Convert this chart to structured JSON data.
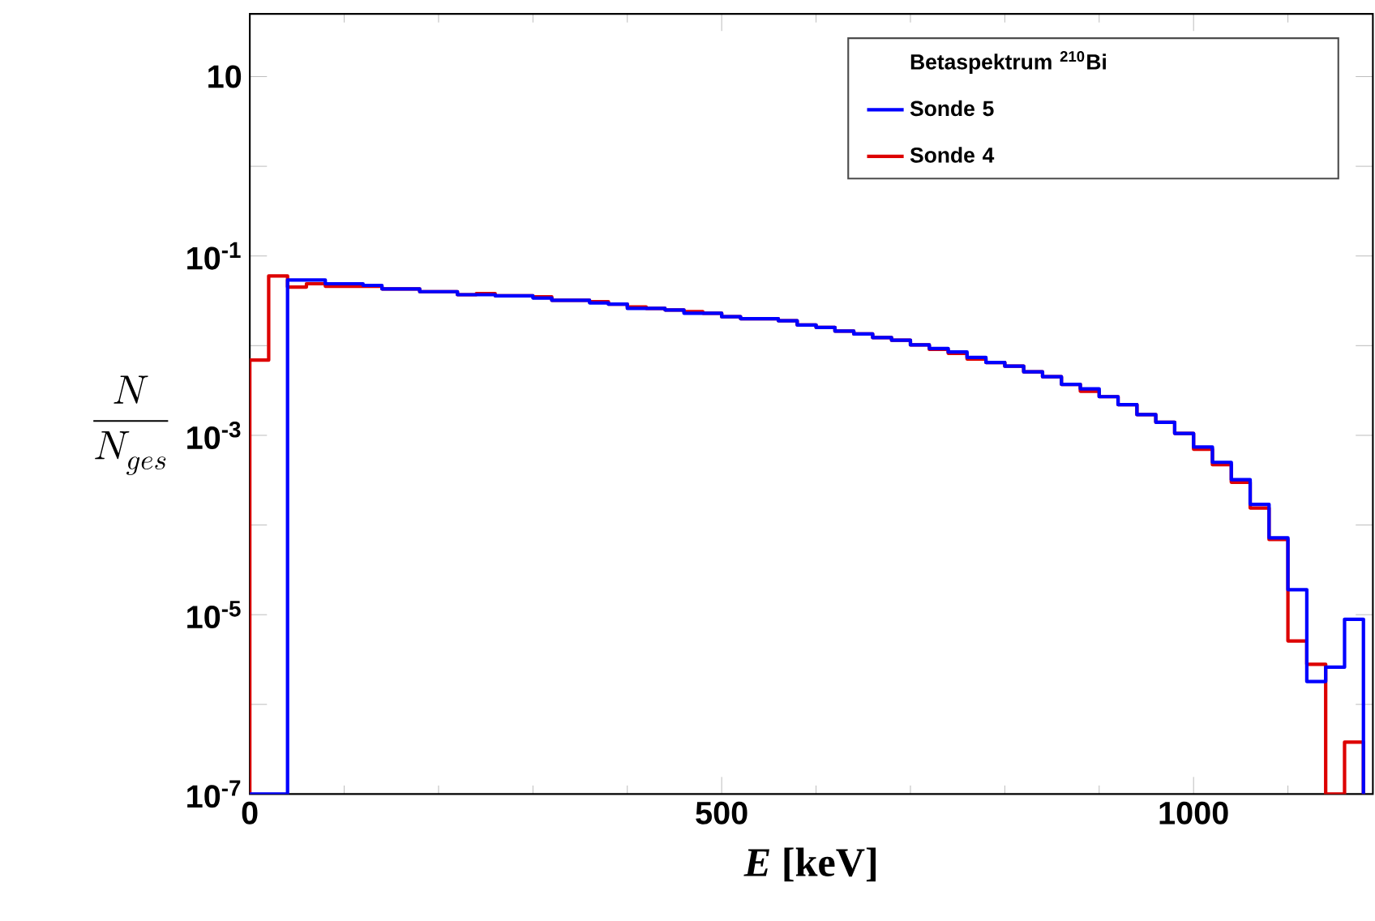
{
  "chart_data": {
    "type": "histogram",
    "xlabel": "*E* [keV]",
    "ylabel": "\\frac{N}{N_{ges}}",
    "legend_title": "Betaspektrum $^{210}$Bi",
    "legend": "top right",
    "log": "y",
    "xlim": [
      0,
      1190
    ],
    "ylim": [
      1e-07,
      50
    ],
    "xticks": [
      0,
      {
        "value": 100,
        "label": null
      },
      {
        "value": 200,
        "label": null
      },
      {
        "value": 300,
        "label": null
      },
      {
        "value": 400,
        "label": null
      },
      500,
      {
        "value": 600,
        "label": null
      },
      {
        "value": 700,
        "label": null
      },
      {
        "value": 800,
        "label": null
      },
      {
        "value": 900,
        "label": null
      },
      1000,
      {
        "value": 1100,
        "label": null
      }
    ],
    "yticks": [
      {
        "value": 1e-07,
        "label": "10$^{-7}$"
      },
      {
        "value": 1e-06,
        "label": null
      },
      {
        "value": 1e-05,
        "label": "10$^{-5}$"
      },
      {
        "value": 0.0001,
        "label": null
      },
      {
        "value": 0.001,
        "label": "10$^{-3}$"
      },
      {
        "value": 0.01,
        "label": null
      },
      {
        "value": 0.1,
        "label": "10$^{-1}$"
      },
      {
        "value": 1,
        "label": null
      },
      10
    ],
    "bins": [
      0,
      20,
      40,
      60,
      80,
      100,
      120,
      140,
      160,
      180,
      200,
      220,
      240,
      260,
      280,
      300,
      320,
      340,
      360,
      380,
      400,
      420,
      440,
      460,
      480,
      500,
      520,
      540,
      560,
      580,
      600,
      620,
      640,
      660,
      680,
      700,
      720,
      740,
      760,
      780,
      800,
      820,
      840,
      860,
      880,
      900,
      920,
      940,
      960,
      980,
      1000,
      1020,
      1040,
      1060,
      1080,
      1100,
      1120,
      1140,
      1160,
      1180
    ],
    "series": [
      {
        "name": "Sonde 5",
        "color": "#0000ff",
        "values": [
          null,
          null,
          0.054,
          0.054,
          0.049,
          0.049,
          0.047,
          0.043,
          0.043,
          0.04,
          0.04,
          0.037,
          0.037,
          0.036,
          0.036,
          0.034,
          0.032,
          0.032,
          0.03,
          0.029,
          0.026,
          0.026,
          0.025,
          0.023,
          0.023,
          0.021,
          0.02,
          0.02,
          0.019,
          0.017,
          0.016,
          0.0145,
          0.0135,
          0.0123,
          0.0115,
          0.0102,
          0.0093,
          0.0085,
          0.0074,
          0.0065,
          0.0059,
          0.0051,
          0.0045,
          0.0037,
          0.0033,
          0.0027,
          0.0022,
          0.0017,
          0.0014,
          0.00105,
          0.00074,
          0.0005,
          0.00032,
          0.00017,
          7.2e-05,
          1.9e-05,
          1.8e-06,
          2.6e-06,
          8.9e-06
        ]
      },
      {
        "name": "Sonde 4",
        "color": "#dd0000",
        "values": [
          0.0069,
          0.06,
          0.045,
          0.049,
          0.046,
          0.046,
          0.046,
          0.043,
          0.043,
          0.04,
          0.04,
          0.037,
          0.038,
          0.036,
          0.036,
          0.035,
          0.032,
          0.032,
          0.031,
          0.029,
          0.027,
          0.026,
          0.025,
          0.024,
          0.023,
          0.021,
          0.02,
          0.02,
          0.019,
          0.017,
          0.016,
          0.0145,
          0.0135,
          0.0123,
          0.0115,
          0.0102,
          0.0091,
          0.0082,
          0.0071,
          0.0065,
          0.0059,
          0.0051,
          0.0045,
          0.0037,
          0.0031,
          0.0027,
          0.0022,
          0.0017,
          0.0014,
          0.00105,
          0.0007,
          0.00047,
          0.0003,
          0.000155,
          6.9e-05,
          5.1e-06,
          2.8e-06,
          null,
          3.8e-07
        ]
      }
    ]
  }
}
